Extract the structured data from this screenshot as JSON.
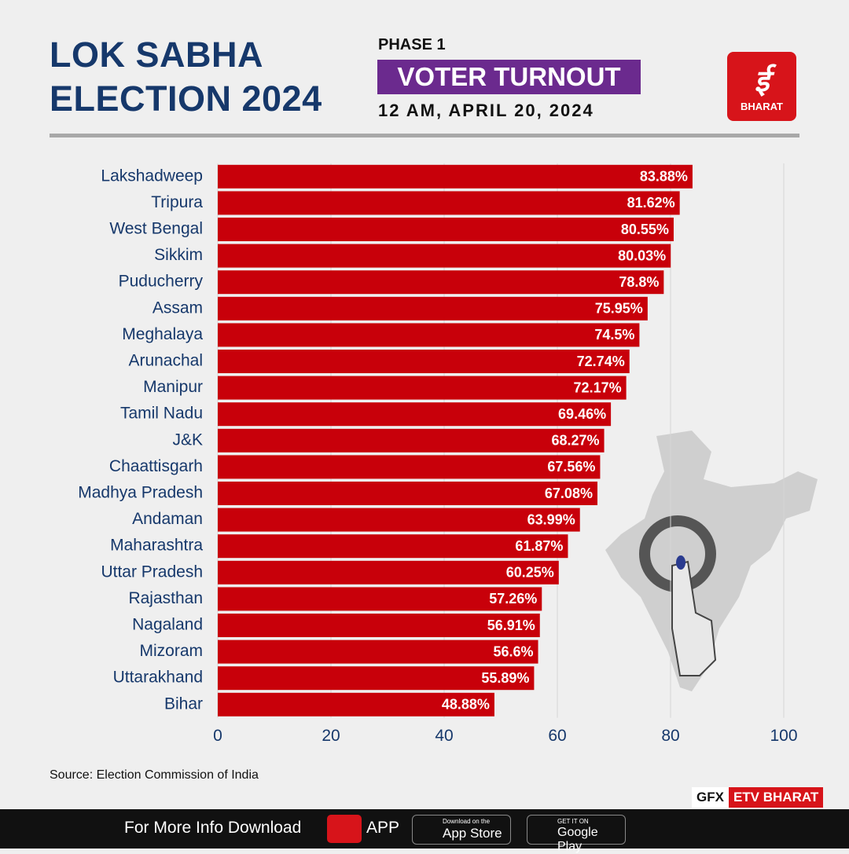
{
  "chart_data": {
    "type": "barh",
    "title": "LOK SABHA ELECTION 2024",
    "kicker": "PHASE 1",
    "subtitle": "VOTER TURNOUT",
    "date": "12 AM, APRIL 20, 2024",
    "source": "Source: Election Commission of India",
    "categories": [
      "Lakshadweep",
      "Tripura",
      "West Bengal",
      "Sikkim",
      "Puducherry",
      "Assam",
      "Meghalaya",
      "Arunachal",
      "Manipur",
      "Tamil Nadu",
      "J&K",
      "Chaattisgarh",
      "Madhya Pradesh",
      "Andaman",
      "Maharashtra",
      "Uttar Pradesh",
      "Rajasthan",
      "Nagaland",
      "Mizoram",
      "Uttarakhand",
      "Bihar"
    ],
    "values": [
      83.88,
      81.62,
      80.55,
      80.03,
      78.8,
      75.95,
      74.5,
      72.74,
      72.17,
      69.46,
      68.27,
      67.56,
      67.08,
      63.99,
      61.87,
      60.25,
      57.26,
      56.91,
      56.6,
      55.89,
      48.88
    ],
    "value_labels": [
      "83.88%",
      "81.62%",
      "80.55%",
      "80.03%",
      "78.8%",
      "75.95%",
      "74.5%",
      "72.74%",
      "72.17%",
      "69.46%",
      "68.27%",
      "67.56%",
      "67.08%",
      "63.99%",
      "61.87%",
      "60.25%",
      "57.26%",
      "56.91%",
      "56.6%",
      "55.89%",
      "48.88%"
    ],
    "color": "#c8000a",
    "xlim": [
      0,
      100
    ],
    "xticks": [
      0,
      20,
      40,
      60,
      80,
      100
    ],
    "grid": true
  },
  "logo": {
    "text": "BHARAT"
  },
  "badge": {
    "prefix": "GFX",
    "name": "ETV BHARAT"
  },
  "footer": {
    "text": "For More Info Download",
    "app": "APP",
    "appstore_small": "Download on the",
    "appstore": "App Store",
    "googleplay_small": "GET IT ON",
    "googleplay": "Google Play"
  }
}
